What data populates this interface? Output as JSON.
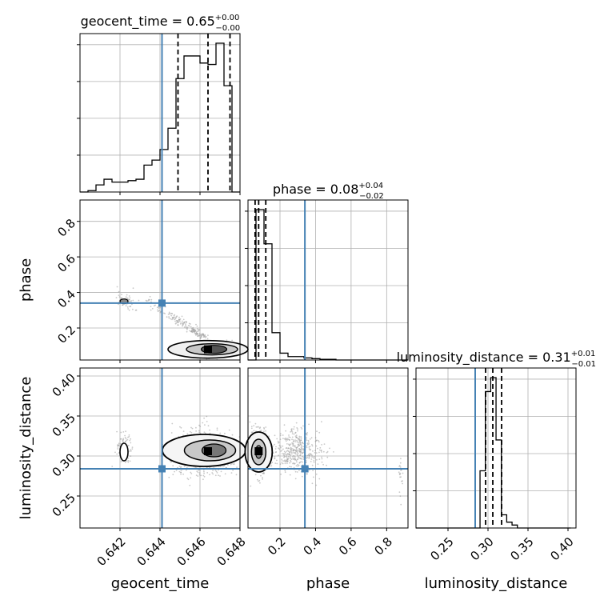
{
  "chart_data": {
    "type": "corner",
    "parameters": [
      "geocent_time",
      "phase",
      "luminosity_distance"
    ],
    "axis_labels": {
      "x": [
        "geocent_time",
        "phase",
        "luminosity_distance"
      ],
      "y": [
        "phase",
        "luminosity_distance"
      ]
    },
    "titles": [
      {
        "param": "geocent_time",
        "text": "geocent_time = 0.65",
        "plus": "+0.00",
        "minus": "−0.00"
      },
      {
        "param": "phase",
        "text": "phase = 0.08",
        "plus": "+0.04",
        "minus": "−0.02"
      },
      {
        "param": "luminosity_distance",
        "text": "luminosity_distance = 0.31",
        "plus": "+0.01",
        "minus": "−0.01"
      }
    ],
    "ranges": {
      "geocent_time": [
        0.64,
        0.648
      ],
      "phase": [
        0.02,
        0.92
      ],
      "luminosity_distance": [
        0.21,
        0.41
      ]
    },
    "ticks": {
      "geocent_time": [
        "0.642",
        "0.644",
        "0.646",
        "0.648"
      ],
      "phase_x": [
        "0.2",
        "0.4",
        "0.6",
        "0.8"
      ],
      "phase_y": [
        "0.2",
        "0.4",
        "0.6",
        "0.8"
      ],
      "luminosity_distance_x": [
        "0.25",
        "0.30",
        "0.35",
        "0.40"
      ],
      "luminosity_distance_y": [
        "0.25",
        "0.30",
        "0.35",
        "0.40"
      ]
    },
    "truths": {
      "geocent_time": 0.6441,
      "phase": 0.34,
      "luminosity_distance": 0.284
    },
    "quantiles": {
      "geocent_time": [
        0.6449,
        0.6464,
        0.6475
      ],
      "phase": [
        0.06,
        0.08,
        0.12
      ],
      "luminosity_distance": [
        0.297,
        0.306,
        0.317
      ]
    },
    "histograms": {
      "geocent_time": {
        "edges_start": 0.64,
        "bin_width": 0.0004,
        "counts": [
          0,
          2,
          10,
          18,
          14,
          14,
          16,
          18,
          38,
          45,
          60,
          90,
          160,
          192,
          192,
          182,
          180,
          210,
          150,
          0
        ]
      },
      "phase": {
        "edges_start": 0.02,
        "bin_width": 0.045,
        "counts": [
          0,
          220,
          170,
          40,
          10,
          5,
          5,
          3,
          2,
          1,
          1,
          0,
          0,
          0,
          0,
          0,
          0,
          0,
          0,
          0
        ]
      },
      "luminosity_distance": {
        "edges_start": 0.21,
        "bin_width": 0.00667,
        "counts": [
          0,
          0,
          0,
          0,
          0,
          0,
          0,
          0,
          0,
          0,
          0,
          0,
          78,
          186,
          205,
          120,
          18,
          8,
          4,
          0,
          0,
          0,
          0,
          0,
          0,
          0,
          0,
          0,
          0
        ]
      }
    },
    "grid": true,
    "colors": {
      "truth": "#4682b4",
      "hist": "#000000",
      "scatter": "#888888",
      "grid": "#b0b0b0"
    }
  }
}
